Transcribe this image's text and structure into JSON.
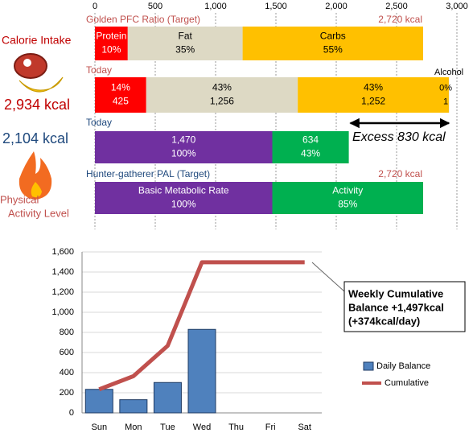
{
  "sidebar": {
    "calorie_intake": "Calorie Intake",
    "intake_total": "2,934 kcal",
    "expenditure_total": "2,104 kcal",
    "pal": [
      "Physical",
      "Activity Level"
    ]
  },
  "chart_data": [
    {
      "type": "stacked-bar",
      "xlim": [
        0,
        3000
      ],
      "xticks": [
        0,
        500,
        {
          "value": 1000,
          "label": "1,000"
        },
        {
          "value": 1500,
          "label": "1,500"
        },
        {
          "value": 2000,
          "label": "2,000"
        },
        {
          "value": 2500,
          "label": "2,500"
        },
        {
          "value": 3000,
          "label": "3,000"
        }
      ],
      "grid": true,
      "rows": [
        {
          "title": "Golden PFC Ratio (Target)",
          "title_color": "#c0504d",
          "total_label": "2,720 kcal",
          "lines": [
            "name",
            "percent_label"
          ],
          "segments": [
            {
              "name": "Protein",
              "percent_label": "10%",
              "value": 272,
              "color": "#ff0000"
            },
            {
              "name": "Fat",
              "percent_label": "35%",
              "value": 952,
              "color": "#ddd9c4"
            },
            {
              "name": "Carbs",
              "percent_label": "55%",
              "value": 1496,
              "color": "#ffc000"
            }
          ]
        },
        {
          "title": "Today",
          "title_color": "#c0504d",
          "lines": [
            "percent_label",
            "value"
          ],
          "segments": [
            {
              "percent_label": "14%",
              "value": 425,
              "color": "#ff0000"
            },
            {
              "percent_label": "43%",
              "value": 1256,
              "value_label": "1,256",
              "color": "#ddd9c4"
            },
            {
              "percent_label": "43%",
              "value": 1252,
              "value_label": "1,252",
              "color": "#ffc000"
            },
            {
              "name": "Alcohol",
              "percent_label": "0%",
              "value": 1,
              "color": "#7f7f7f"
            }
          ]
        },
        {
          "title": "Today",
          "title_color": "#1f497d",
          "lines": [
            "value",
            "percent_label"
          ],
          "annotation": "Excess 830 kcal",
          "segments": [
            {
              "percent_label": "100%",
              "value": 1470,
              "value_label": "1,470",
              "color": "#7030a0"
            },
            {
              "percent_label": "43%",
              "value": 634,
              "color": "#00b050"
            }
          ]
        },
        {
          "title": "Hunter-gatherer  PAL (Target)",
          "title_color": "#1f497d",
          "total_label": "2,720 kcal",
          "lines": [
            "name",
            "percent_label"
          ],
          "segments": [
            {
              "name": "Basic Metabolic Rate",
              "percent_label": "100%",
              "value": 1470,
              "color": "#7030a0"
            },
            {
              "name": "Activity",
              "percent_label": "85%",
              "value": 1250,
              "color": "#00b050"
            }
          ]
        }
      ]
    },
    {
      "type": "bar-line",
      "categories": [
        "Sun",
        "Mon",
        "Tue",
        "Wed",
        "Thu",
        "Fri",
        "Sat"
      ],
      "series": [
        {
          "name": "Daily Balance",
          "type": "bar",
          "color": "#4f81bd",
          "values": [
            234,
            131,
            302,
            830,
            null,
            null,
            null
          ]
        },
        {
          "name": "Cumulative",
          "type": "line",
          "color": "#c0504d",
          "values": [
            234,
            365,
            667,
            1497,
            1497,
            1497,
            1497
          ]
        }
      ],
      "ylim": [
        0,
        1600
      ],
      "yticks": [
        0,
        200,
        400,
        600,
        800,
        {
          "value": 1000,
          "label": "1,000"
        },
        {
          "value": 1200,
          "label": "1,200"
        },
        {
          "value": 1400,
          "label": "1,400"
        },
        {
          "value": 1600,
          "label": "1,600"
        }
      ],
      "grid": true,
      "legend": "right",
      "annotation": [
        "Weekly Cumulative",
        "Balance +1,497kcal",
        "(+374kcal/day)"
      ]
    }
  ]
}
